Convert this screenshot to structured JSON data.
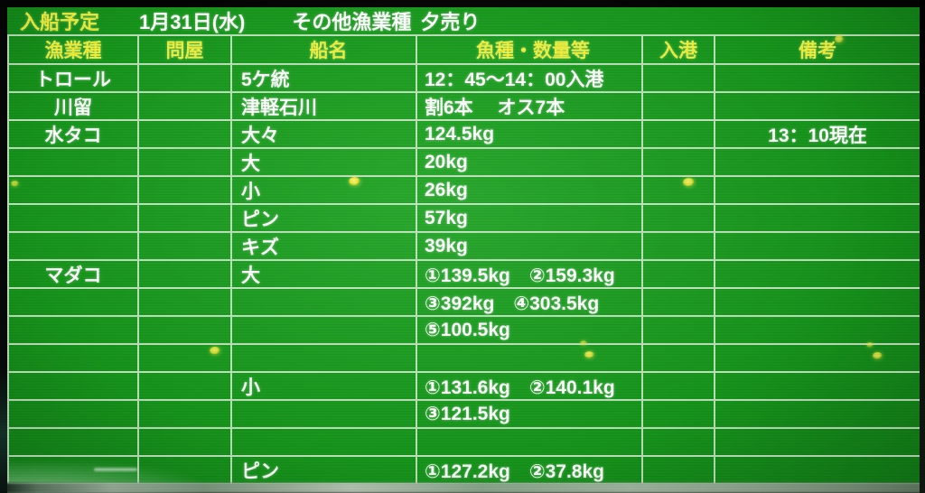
{
  "title_bar": {
    "label": "入船予定",
    "date": "1月31日(水)",
    "category": "その他漁業種",
    "sale_type": "夕売り"
  },
  "table": {
    "columns": [
      "漁業種",
      "問屋",
      "船名",
      "魚種・数量等",
      "入港",
      "備考"
    ],
    "rows": [
      [
        "トロール",
        "",
        "5ケ統",
        "12：45～14：00入港",
        "",
        ""
      ],
      [
        "川留",
        "",
        "津軽石川",
        "割6本　 オス7本",
        "",
        ""
      ],
      [
        "水タコ",
        "",
        "大々",
        "124.5kg",
        "",
        "13：10現在"
      ],
      [
        "",
        "",
        "大",
        "20kg",
        "",
        ""
      ],
      [
        "",
        "",
        "小",
        "26kg",
        "",
        ""
      ],
      [
        "",
        "",
        "ピン",
        "57kg",
        "",
        ""
      ],
      [
        "",
        "",
        "キズ",
        "39kg",
        "",
        ""
      ],
      [
        "マダコ",
        "",
        "大",
        "①139.5kg　②159.3kg",
        "",
        ""
      ],
      [
        "",
        "",
        "",
        "③392kg　④303.5kg",
        "",
        ""
      ],
      [
        "",
        "",
        "",
        "⑤100.5kg",
        "",
        ""
      ],
      [
        "",
        "",
        "",
        "",
        "",
        ""
      ],
      [
        "",
        "",
        "小",
        "①131.6kg　②140.1kg",
        "",
        ""
      ],
      [
        "",
        "",
        "",
        "③121.5kg",
        "",
        ""
      ],
      [
        "",
        "",
        "",
        "",
        "",
        ""
      ],
      [
        "",
        "",
        "ピン",
        "①127.2kg　②37.8kg",
        "",
        ""
      ]
    ]
  },
  "colors": {
    "board_green": "#17941c",
    "board_green_highlight": "#1ca320",
    "board_green_dark": "#0b5c10",
    "header_text_yellow": "#f0ee3a",
    "body_text_white": "#ffffff",
    "grid_line": "#dff2db"
  }
}
